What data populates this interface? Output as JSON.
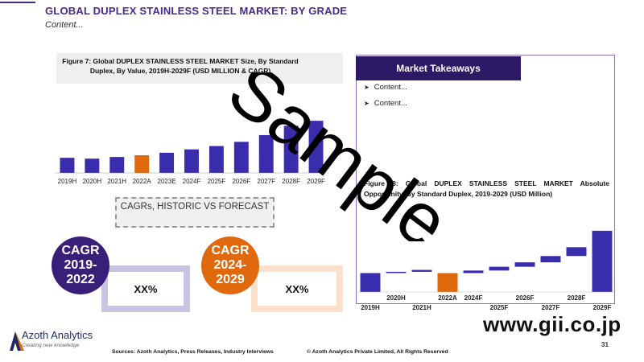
{
  "header": {
    "title": "GLOBAL DUPLEX STAINLESS STEEL MARKET: BY GRADE",
    "subtitle": "Content..."
  },
  "figure7": {
    "title": "Figure 7: Global DUPLEX STAINLESS STEEL MARKET Size, By Standard Duplex, By Value, 2019H-2029F (USD MILLION & CAGR)"
  },
  "cagr": {
    "title": "CAGRs, HISTORIC VS FORECAST",
    "historic_label": "CAGR",
    "historic_period": "2019-2022",
    "historic_value": "XX%",
    "forecast_label": "CAGR",
    "forecast_period": "2024-2029",
    "forecast_value": "XX%"
  },
  "takeaways": {
    "title": "Market Takeaways",
    "items": [
      "Content...",
      "Content..."
    ]
  },
  "figure8": {
    "title": "Figure 8: Global DUPLEX STAINLESS STEEL MARKET Absolute Opportunity, By Standard Duplex, 2019-2029 (USD Million)"
  },
  "watermark": "Sample",
  "site_watermark": "www.gii.co.jp",
  "brand": {
    "name": "Azoth Analytics",
    "tagline": "Creating new knowledge"
  },
  "footer": {
    "sources": "Sources: Azoth Analytics, Press Releases, Industry Interviews",
    "copyright": "© Azoth Analytics Private Limited, All Rights Reserved",
    "page": "31"
  },
  "colors": {
    "primary": "#3a2dad",
    "highlight": "#e0690e",
    "dark_purple": "#2d1a66"
  },
  "chart_data": [
    {
      "type": "bar",
      "categories": [
        "2019H",
        "2020H",
        "2021H",
        "2022A",
        "2023E",
        "2024F",
        "2025F",
        "2026F",
        "2027F",
        "2028F",
        "2029F"
      ],
      "values": [
        18,
        17,
        19,
        21,
        24,
        28,
        32,
        37,
        45,
        56,
        62
      ],
      "highlight_index": 3,
      "ylim": [
        0,
        65
      ],
      "grid": false
    },
    {
      "type": "waterfall",
      "categories": [
        "2019H",
        "2020H",
        "2021H",
        "2022A",
        "2024F",
        "2025F",
        "2026F",
        "2027F",
        "2028F",
        "2029F"
      ],
      "label_rows": [
        [
          "",
          "2020H",
          "",
          "2022A",
          "2024F",
          "",
          "2026F",
          "",
          "2028F",
          ""
        ],
        [
          "2019H",
          "",
          "2021H",
          "",
          "",
          "2025F",
          "",
          "2027F",
          "",
          "2029F"
        ]
      ],
      "values": [
        30,
        2,
        3,
        30,
        4,
        6,
        7,
        10,
        14,
        97
      ],
      "kinds": [
        "total",
        "delta",
        "delta",
        "highlight",
        "delta",
        "delta",
        "delta",
        "delta",
        "delta",
        "total"
      ],
      "ylim": [
        0,
        130
      ],
      "grid": false
    }
  ]
}
